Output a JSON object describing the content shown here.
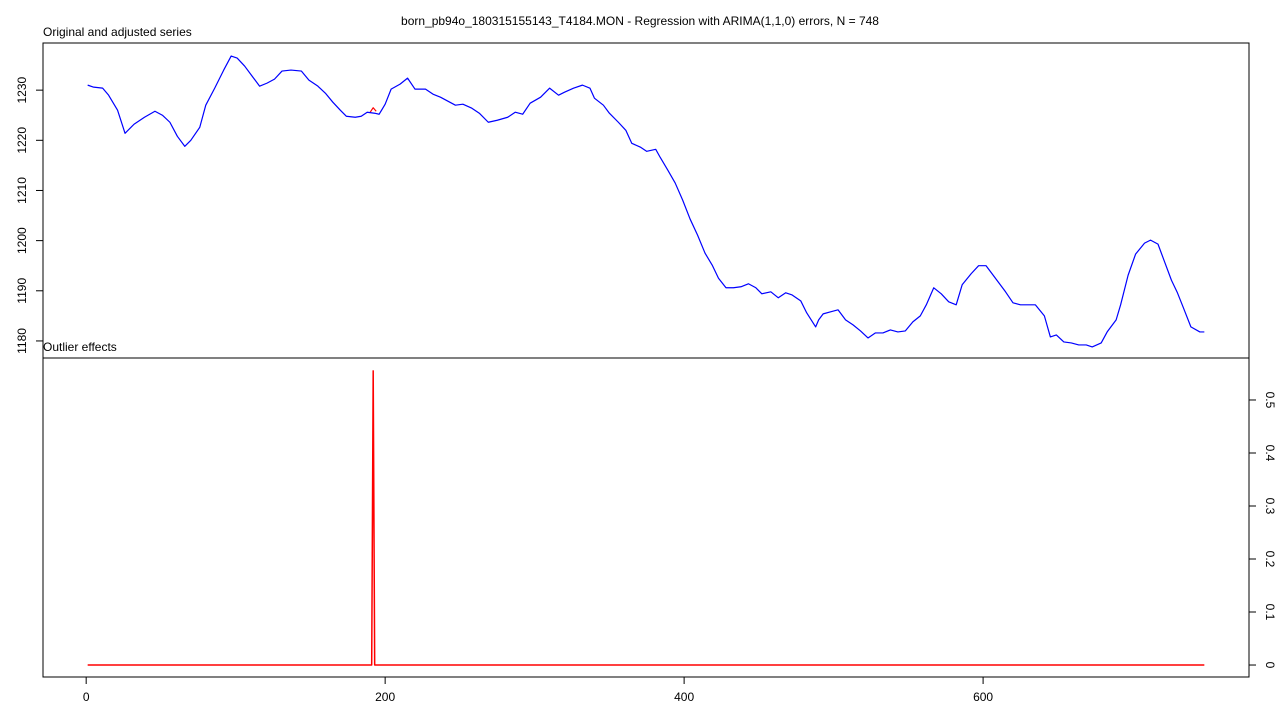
{
  "chart_data": [
    {
      "type": "line",
      "title": "born_pb94o_180315155143_T4184.MON - Regression with ARIMA(1,1,0) errors, N = 748",
      "subtitle": "Original and adjusted series",
      "yaxis_side": "left",
      "xlim": [
        -28.88,
        777.88
      ],
      "ylim": [
        1176.6,
        1239.4
      ],
      "yticks": [
        1180,
        1190,
        1200,
        1210,
        1220,
        1230
      ],
      "series": [
        {
          "color": "#ff0000",
          "x": [
            190,
            192,
            194
          ],
          "values": [
            1225.6,
            1226.5,
            1225.8
          ]
        },
        {
          "color": "#0000ff",
          "x": [
            1,
            5,
            11,
            15,
            21,
            26,
            32,
            39,
            46,
            51,
            56,
            61,
            66,
            70,
            76,
            80,
            86,
            92,
            97,
            101,
            106,
            111,
            116,
            121,
            126,
            131,
            137,
            144,
            149,
            155,
            160,
            165,
            170,
            174,
            180,
            184,
            188,
            193,
            196,
            200,
            204,
            210,
            215,
            220,
            227,
            232,
            237,
            242,
            247,
            252,
            258,
            263,
            269,
            275,
            282,
            287,
            292,
            297,
            304,
            310,
            316,
            320,
            326,
            332,
            337,
            340,
            346,
            350,
            356,
            361,
            365,
            371,
            375,
            381,
            384,
            389,
            394,
            399,
            404,
            409,
            414,
            419,
            423,
            428,
            433,
            438,
            443,
            448,
            452,
            458,
            463,
            468,
            472,
            478,
            482,
            488,
            490,
            493,
            498,
            503,
            508,
            513,
            518,
            523,
            528,
            533,
            538,
            543,
            548,
            553,
            558,
            562,
            567,
            572,
            577,
            582,
            586,
            592,
            597,
            602,
            605,
            610,
            615,
            620,
            625,
            630,
            635,
            641,
            645,
            649,
            654,
            659,
            664,
            669,
            673,
            679,
            683,
            689,
            692,
            697,
            702,
            708,
            712,
            717,
            721,
            726,
            730,
            734,
            739,
            745,
            748
          ],
          "values": [
            1231.0,
            1230.6,
            1230.4,
            1229.0,
            1226.0,
            1221.4,
            1223.2,
            1224.6,
            1225.8,
            1225.0,
            1223.6,
            1220.8,
            1218.8,
            1220.0,
            1222.6,
            1227.0,
            1230.4,
            1234.0,
            1236.8,
            1236.4,
            1234.8,
            1232.8,
            1230.8,
            1231.4,
            1232.2,
            1233.8,
            1234.0,
            1233.8,
            1232.0,
            1230.8,
            1229.4,
            1227.6,
            1226.0,
            1224.8,
            1224.6,
            1224.8,
            1225.6,
            1225.4,
            1225.2,
            1227.2,
            1230.2,
            1231.2,
            1232.4,
            1230.2,
            1230.2,
            1229.2,
            1228.6,
            1227.8,
            1227.0,
            1227.2,
            1226.4,
            1225.4,
            1223.6,
            1224.0,
            1224.6,
            1225.6,
            1225.2,
            1227.4,
            1228.6,
            1230.4,
            1229.0,
            1229.6,
            1230.4,
            1231.0,
            1230.4,
            1228.4,
            1227.0,
            1225.4,
            1223.6,
            1222.0,
            1219.4,
            1218.6,
            1217.8,
            1218.2,
            1216.6,
            1214.1,
            1211.5,
            1208.1,
            1204.3,
            1201.1,
            1197.5,
            1195.0,
            1192.5,
            1190.6,
            1190.6,
            1190.8,
            1191.4,
            1190.6,
            1189.4,
            1189.8,
            1188.6,
            1189.6,
            1189.2,
            1188.0,
            1185.6,
            1182.8,
            1184.2,
            1185.4,
            1185.8,
            1186.2,
            1184.2,
            1183.2,
            1182.0,
            1180.6,
            1181.6,
            1181.6,
            1182.2,
            1181.8,
            1182.0,
            1183.8,
            1185.0,
            1187.2,
            1190.6,
            1189.4,
            1187.8,
            1187.2,
            1191.2,
            1193.4,
            1195.0,
            1195.0,
            1193.8,
            1191.8,
            1189.8,
            1187.6,
            1187.2,
            1187.2,
            1187.2,
            1185.0,
            1180.8,
            1181.2,
            1179.8,
            1179.6,
            1179.2,
            1179.2,
            1178.8,
            1179.6,
            1181.8,
            1184.2,
            1187.2,
            1193.1,
            1197.3,
            1199.5,
            1200.1,
            1199.3,
            1196.1,
            1192.1,
            1189.6,
            1186.6,
            1182.8,
            1181.8,
            1181.8
          ]
        }
      ]
    },
    {
      "type": "line",
      "subtitle": "Outlier effects",
      "yaxis_side": "right",
      "xlim": [
        -28.88,
        777.88
      ],
      "xticks": [
        0,
        200,
        400,
        600
      ],
      "ylim": [
        -0.0226,
        0.5792
      ],
      "yticks": [
        0,
        0.1,
        0.2,
        0.3,
        0.4,
        0.5
      ],
      "series": [
        {
          "color": "#ff0000",
          "x": [
            1,
            191,
            192,
            193,
            748
          ],
          "values": [
            0,
            0,
            0.555,
            0,
            0
          ]
        }
      ]
    }
  ]
}
